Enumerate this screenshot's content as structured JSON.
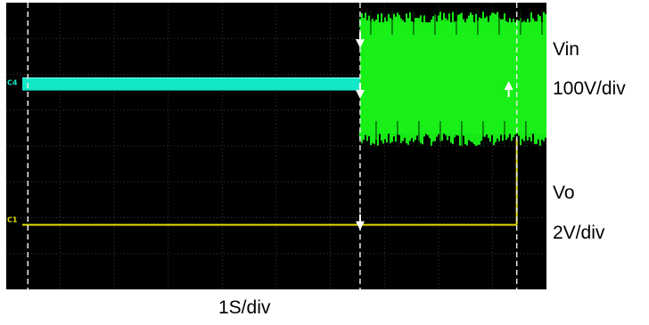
{
  "chart_data": {
    "type": "line",
    "title": "",
    "grid": true,
    "divisions": {
      "x": 10,
      "y": 8
    },
    "time_scale": "1S/div",
    "x_label": "1S/div",
    "cursors_div": [
      0.4,
      6.55,
      9.45
    ],
    "series": [
      {
        "name": "Vin",
        "channel_tag": "C4",
        "scale": "100V/div",
        "label_top": "Vin",
        "label_bottom": "100V/div",
        "color": "#15e6c2",
        "before_color": "#12e8c8",
        "after_color": "#18f018",
        "step_time_div": 6.55,
        "level_before_div": [
          2.1,
          2.45
        ],
        "envelope_after_div": [
          0.2,
          4.05
        ]
      },
      {
        "name": "Vo",
        "channel_tag": "C1",
        "scale": "2V/div",
        "label_top": "Vo",
        "label_bottom": "2V/div",
        "color": "#e8e100",
        "level_div": 6.2,
        "rise_time_div": 9.45
      }
    ]
  }
}
